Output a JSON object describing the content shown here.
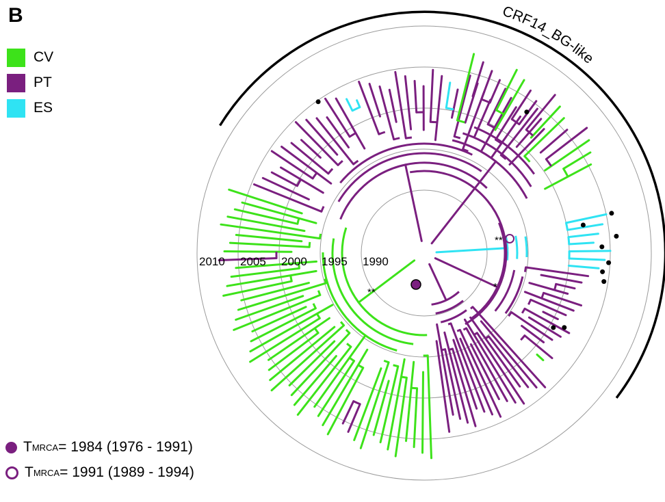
{
  "panel_label": "B",
  "colors": {
    "cv": "#3de21a",
    "pt": "#7a1f7f",
    "es": "#2fe3f3",
    "ring": "#9a9a9a",
    "clade_arc": "#000000"
  },
  "legend": [
    {
      "label": "CV",
      "color": "#3de21a"
    },
    {
      "label": "PT",
      "color": "#7a1f7f"
    },
    {
      "label": "ES",
      "color": "#2fe3f3"
    }
  ],
  "year_rings": [
    "1990",
    "1995",
    "2000",
    "2005",
    "2010"
  ],
  "clade_label": "CRF14_BG-like",
  "annotations": {
    "double_star": "**",
    "single_star": "*"
  },
  "tmrca": [
    {
      "symbol": "filled-circle",
      "prefix": "T",
      "subscript": "MRCA",
      "text": " = 1984 (1976 - 1991)"
    },
    {
      "symbol": "open-circle",
      "prefix": "T",
      "subscript": "MRCA",
      "text": " = 1991 (1989 - 1994)"
    }
  ]
}
